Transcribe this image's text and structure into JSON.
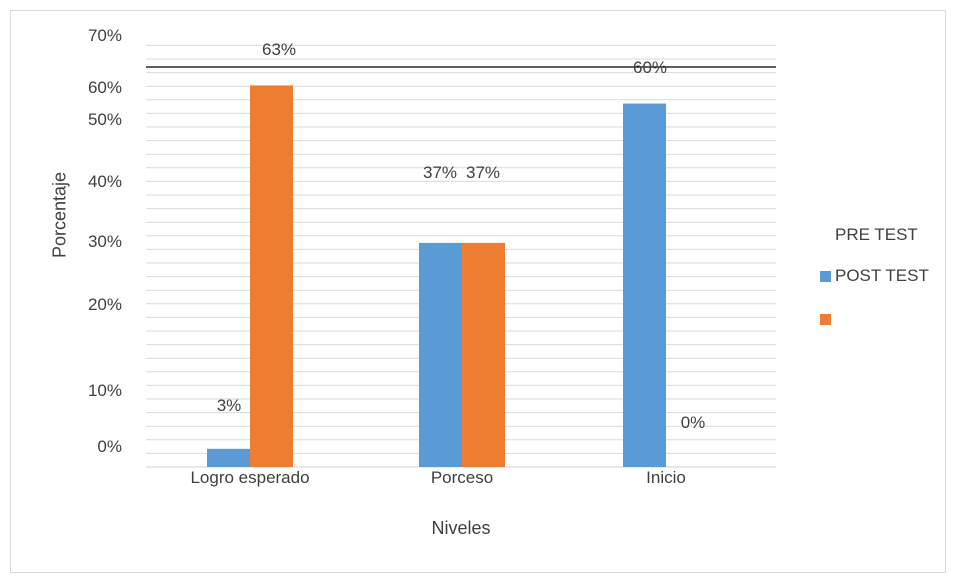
{
  "chart_data": {
    "type": "bar",
    "categories": [
      "Logro esperado",
      "Porceso",
      "Inicio"
    ],
    "series": [
      {
        "name": "POST TEST",
        "color": "#5b9bd5",
        "values": [
          3,
          37,
          60
        ]
      },
      {
        "name": "",
        "color": "#ed7d31",
        "values": [
          63,
          37,
          0
        ]
      }
    ],
    "data_labels": [
      "3%",
      "63%",
      "37%",
      "37%",
      "60%",
      "0%"
    ],
    "ytick_labels": [
      "0%",
      "10%",
      "20%",
      "30%",
      "40%",
      "50%",
      "60%",
      "70%"
    ],
    "xlabel": "Niveles",
    "ylabel": "Porcentaje",
    "legend_title": "PRE TEST",
    "ylim": [
      0,
      70
    ],
    "grid": true,
    "legend_position": "right"
  }
}
